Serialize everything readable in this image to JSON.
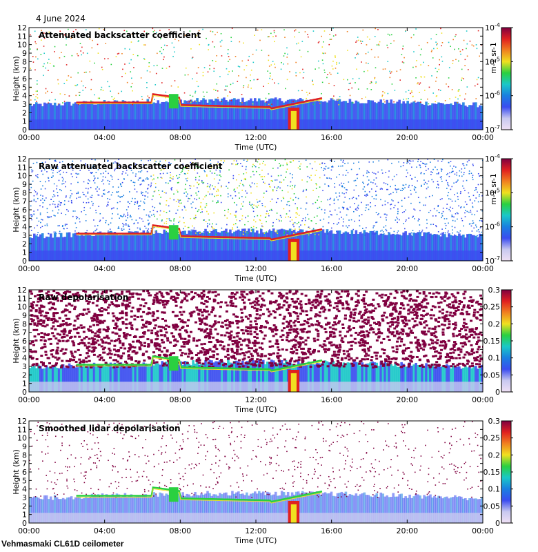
{
  "date": "4 June 2024",
  "instrument": "Vehmasmaki CL61D ceilometer",
  "colors": {
    "background": "#ffffff",
    "axis": "#000000",
    "colormap": [
      "#efe0f5",
      "#c8c8f0",
      "#3a4cf0",
      "#1a7fe0",
      "#1ac8c8",
      "#2ad040",
      "#f0e020",
      "#f08020",
      "#e02020",
      "#800040"
    ]
  },
  "chart_data": [
    {
      "type": "heatmap",
      "title": "Attenuated backscatter coefficient",
      "xlabel": "Time (UTC)",
      "ylabel": "Height (km)",
      "x_ticks": [
        "00:00",
        "04:00",
        "08:00",
        "12:00",
        "16:00",
        "20:00",
        "00:00"
      ],
      "y_ticks": [
        "0",
        "1",
        "2",
        "3",
        "4",
        "5",
        "6",
        "7",
        "8",
        "9",
        "10",
        "11",
        "12"
      ],
      "ylim": [
        0,
        12
      ],
      "xlim_hours": [
        0,
        24
      ],
      "colorbar": {
        "scale": "log",
        "range": [
          1e-07,
          0.0001
        ],
        "ticks": [
          "10-7",
          "10-6",
          "10-5",
          "10-4"
        ],
        "tick_values": [
          -7,
          -6,
          -5,
          -4
        ],
        "unit": "m-1 sr-1"
      }
    },
    {
      "type": "heatmap",
      "title": "Raw attenuated backscatter coefficient",
      "xlabel": "Time (UTC)",
      "ylabel": "Height (km)",
      "x_ticks": [
        "00:00",
        "04:00",
        "08:00",
        "12:00",
        "16:00",
        "20:00",
        "00:00"
      ],
      "y_ticks": [
        "0",
        "1",
        "2",
        "3",
        "4",
        "5",
        "6",
        "7",
        "8",
        "9",
        "10",
        "11",
        "12"
      ],
      "ylim": [
        0,
        12
      ],
      "xlim_hours": [
        0,
        24
      ],
      "colorbar": {
        "scale": "log",
        "range": [
          1e-07,
          0.0001
        ],
        "ticks": [
          "10-7",
          "10-6",
          "10-5",
          "10-4"
        ],
        "tick_values": [
          -7,
          -6,
          -5,
          -4
        ],
        "unit": "m-1 sr-1"
      }
    },
    {
      "type": "heatmap",
      "title": "Raw depolarisation",
      "xlabel": "Time (UTC)",
      "ylabel": "Height (km)",
      "x_ticks": [
        "00:00",
        "04:00",
        "08:00",
        "12:00",
        "16:00",
        "20:00",
        "00:00"
      ],
      "y_ticks": [
        "0",
        "1",
        "2",
        "3",
        "4",
        "5",
        "6",
        "7",
        "8",
        "9",
        "10",
        "11",
        "12"
      ],
      "ylim": [
        0,
        12
      ],
      "xlim_hours": [
        0,
        24
      ],
      "colorbar": {
        "scale": "linear",
        "range": [
          0,
          0.3
        ],
        "ticks": [
          "0",
          "0.05",
          "0.1",
          "0.15",
          "0.2",
          "0.25",
          "0.3"
        ],
        "tick_values": [
          0,
          0.05,
          0.1,
          0.15,
          0.2,
          0.25,
          0.3
        ],
        "unit": ""
      }
    },
    {
      "type": "heatmap",
      "title": "Smoothed lidar depolarisation",
      "xlabel": "Time (UTC)",
      "ylabel": "Height (km)",
      "x_ticks": [
        "00:00",
        "04:00",
        "08:00",
        "12:00",
        "16:00",
        "20:00",
        "00:00"
      ],
      "y_ticks": [
        "0",
        "1",
        "2",
        "3",
        "4",
        "5",
        "6",
        "7",
        "8",
        "9",
        "10",
        "11",
        "12"
      ],
      "ylim": [
        0,
        12
      ],
      "xlim_hours": [
        0,
        24
      ],
      "colorbar": {
        "scale": "linear",
        "range": [
          0,
          0.3
        ],
        "ticks": [
          "0",
          "0.05",
          "0.1",
          "0.15",
          "0.2",
          "0.25",
          "0.3"
        ],
        "tick_values": [
          0,
          0.05,
          0.1,
          0.15,
          0.2,
          0.25,
          0.3
        ],
        "unit": ""
      }
    }
  ]
}
